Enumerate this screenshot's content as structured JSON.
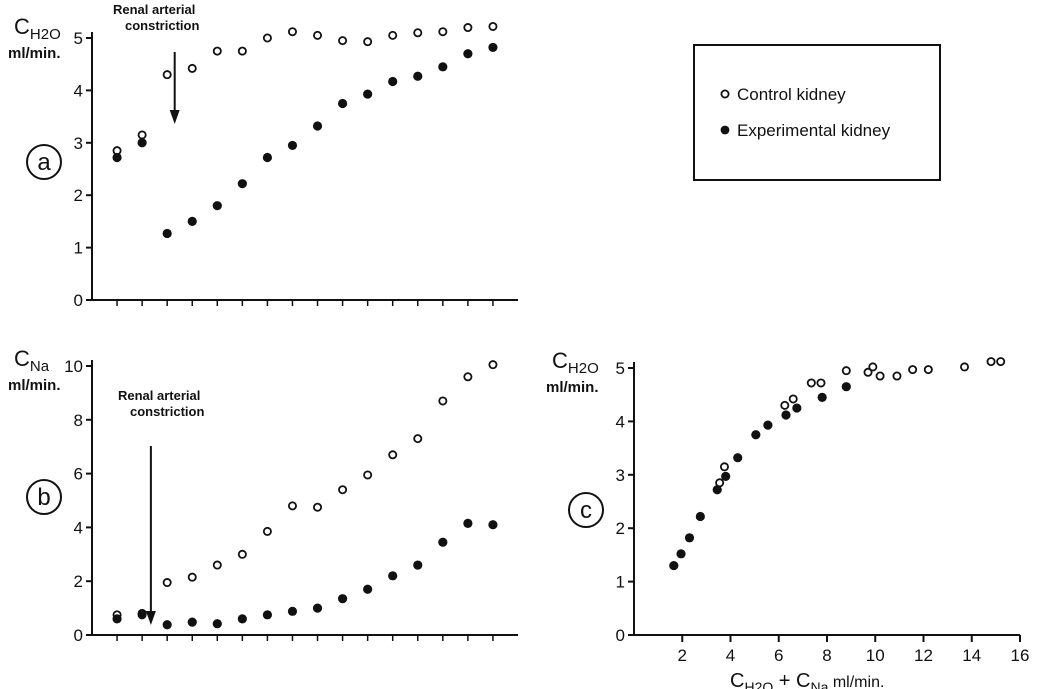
{
  "legend": {
    "items": [
      {
        "label": "Control kidney",
        "marker": "open-circle"
      },
      {
        "label": "Experimental kidney",
        "marker": "filled-circle"
      }
    ]
  },
  "chart_data": [
    {
      "id": "a",
      "type": "scatter",
      "panel_label": "a",
      "ylabel_parts": [
        "C",
        "H",
        "2",
        "O"
      ],
      "yunit": "ml/min.",
      "ylim": [
        0,
        5
      ],
      "yticks": [
        "0",
        "1",
        "2",
        "3",
        "4",
        "5"
      ],
      "annotation": [
        "Renal arterial",
        "constriction"
      ],
      "annotation_x": 3.3,
      "x_note": "sequential observations, unlabeled axis",
      "xlim": [
        0,
        18
      ],
      "series": [
        {
          "name": "Control kidney",
          "marker": "open",
          "x": [
            1,
            2,
            3,
            4,
            5,
            6,
            7,
            8,
            9,
            10,
            11,
            12,
            13,
            14,
            15,
            16
          ],
          "y": [
            2.85,
            3.15,
            4.3,
            4.42,
            4.75,
            4.75,
            5.0,
            5.12,
            5.05,
            4.95,
            4.93,
            5.05,
            5.1,
            5.12,
            5.2,
            5.22
          ]
        },
        {
          "name": "Experimental kidney",
          "marker": "filled",
          "x": [
            1,
            2,
            3,
            4,
            5,
            6,
            7,
            8,
            9,
            10,
            11,
            12,
            13,
            14,
            15,
            16
          ],
          "y": [
            2.72,
            3.0,
            1.27,
            1.5,
            1.8,
            2.22,
            2.72,
            2.95,
            3.32,
            3.75,
            3.93,
            4.17,
            4.27,
            4.45,
            4.7,
            4.82
          ]
        }
      ]
    },
    {
      "id": "b",
      "type": "scatter",
      "panel_label": "b",
      "ylabel_parts": [
        "C",
        "Na"
      ],
      "yunit": "ml/min.",
      "ylim": [
        0,
        10
      ],
      "yticks": [
        "0",
        "2",
        "4",
        "6",
        "8",
        "10"
      ],
      "annotation": [
        "Renal arterial",
        "constriction"
      ],
      "annotation_x": 2.35,
      "xlim": [
        0,
        18
      ],
      "series": [
        {
          "name": "Control kidney",
          "marker": "open",
          "x": [
            1,
            2,
            3,
            4,
            5,
            6,
            7,
            8,
            9,
            10,
            11,
            12,
            13,
            14,
            15,
            16
          ],
          "y": [
            0.75,
            0.75,
            1.95,
            2.15,
            2.6,
            3.0,
            3.85,
            4.8,
            4.75,
            5.4,
            5.95,
            6.7,
            7.3,
            8.7,
            9.6,
            10.05
          ]
        },
        {
          "name": "Experimental kidney",
          "marker": "filled",
          "x": [
            1,
            2,
            3,
            4,
            5,
            6,
            7,
            8,
            9,
            10,
            11,
            12,
            13,
            14,
            15,
            16
          ],
          "y": [
            0.6,
            0.8,
            0.38,
            0.48,
            0.42,
            0.6,
            0.75,
            0.88,
            1.0,
            1.35,
            1.7,
            2.2,
            2.6,
            3.45,
            4.15,
            4.1
          ]
        }
      ]
    },
    {
      "id": "c",
      "type": "scatter",
      "panel_label": "c",
      "ylabel_parts": [
        "C",
        "H",
        "2",
        "O"
      ],
      "yunit": "ml/min.",
      "ylim": [
        0,
        5
      ],
      "yticks": [
        "0",
        "1",
        "2",
        "3",
        "4",
        "5"
      ],
      "xlim": [
        0,
        16
      ],
      "xticks": [
        "2",
        "4",
        "6",
        "8",
        "10",
        "12",
        "14",
        "16"
      ],
      "xlabel_parts": [
        "C",
        "H",
        "2",
        "O",
        " + C",
        "Na",
        "   ml/min."
      ],
      "series": [
        {
          "name": "Control kidney",
          "marker": "open",
          "x": [
            3.55,
            3.75,
            6.25,
            6.6,
            7.35,
            7.75,
            8.8,
            9.7,
            9.9,
            10.2,
            10.9,
            11.55,
            12.2,
            13.7,
            14.8,
            15.2
          ],
          "y": [
            2.85,
            3.15,
            4.3,
            4.42,
            4.72,
            4.72,
            4.95,
            4.92,
            5.02,
            4.85,
            4.85,
            4.97,
            4.97,
            5.02,
            5.12,
            5.12
          ]
        },
        {
          "name": "Experimental kidney",
          "marker": "filled",
          "x": [
            1.65,
            1.95,
            2.3,
            2.75,
            3.45,
            3.8,
            4.3,
            5.05,
            5.55,
            6.3,
            6.75,
            7.8,
            8.8
          ],
          "y": [
            1.3,
            1.52,
            1.82,
            2.22,
            2.72,
            2.97,
            3.32,
            3.75,
            3.93,
            4.12,
            4.25,
            4.45,
            4.65
          ]
        }
      ]
    }
  ]
}
